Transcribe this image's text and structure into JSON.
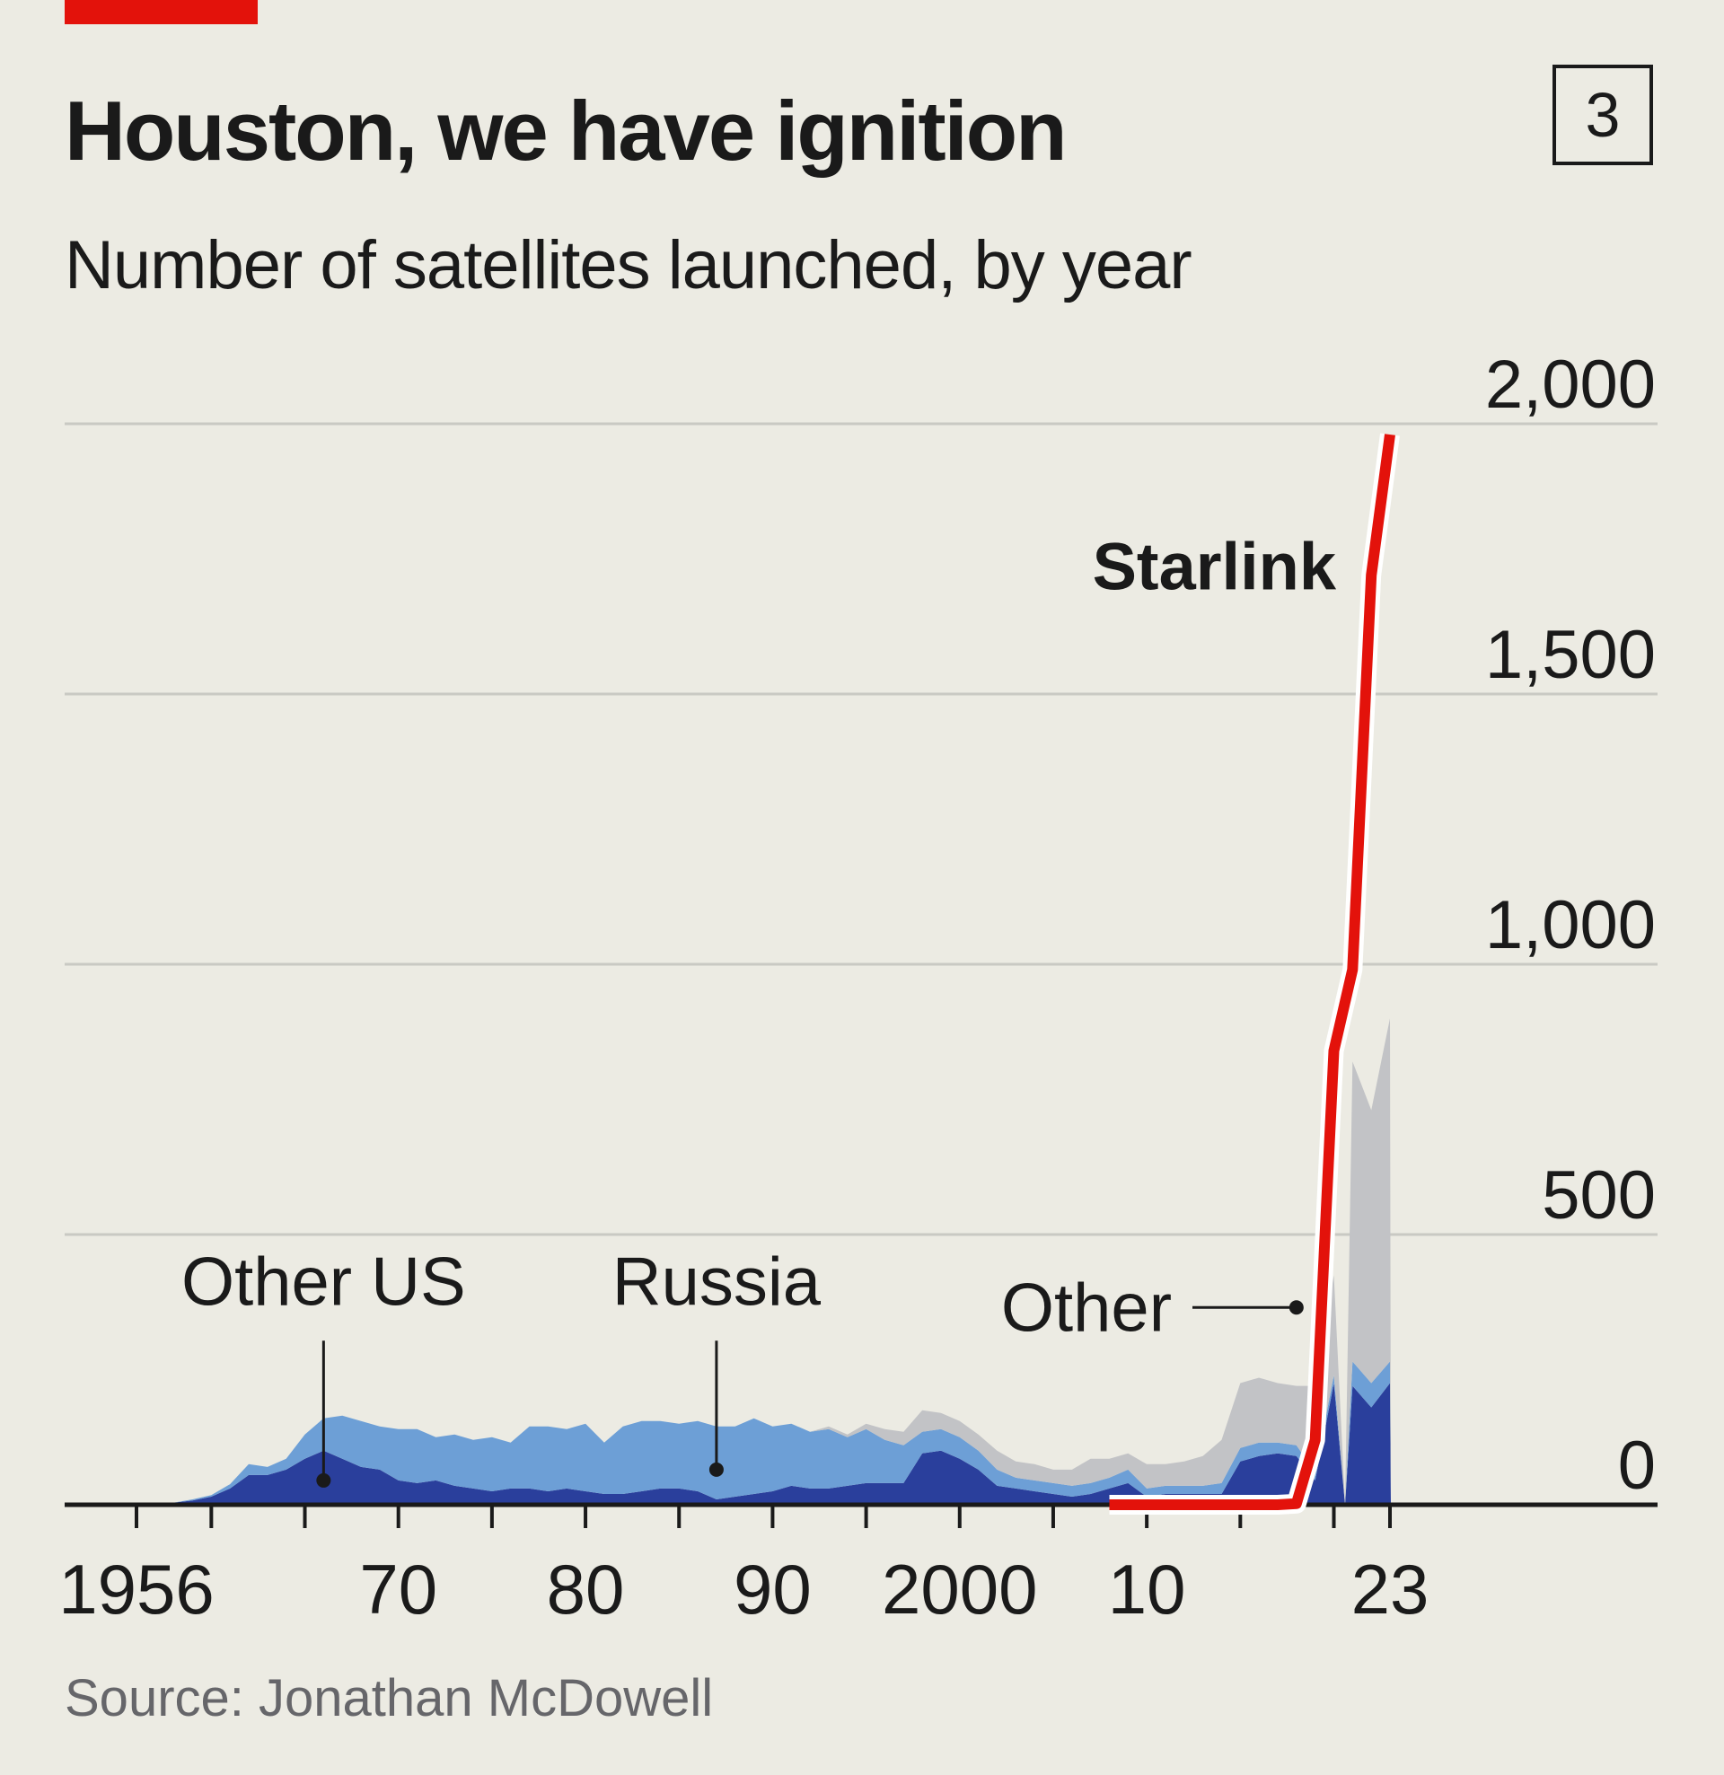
{
  "header": {
    "tag_color": "#e3120b",
    "title": "Houston, we have ignition",
    "chart_number": "3",
    "source": "Source: Jonathan McDowell"
  },
  "chart_data": {
    "type": "area",
    "title": "Houston, we have ignition",
    "subtitle": "Number of satellites launched, by year",
    "xlabel": "",
    "ylabel": "",
    "xlim": [
      1956,
      2023
    ],
    "ylim": [
      0,
      2000
    ],
    "grid": true,
    "x_ticks": [
      1956,
      1960,
      1965,
      1970,
      1975,
      1980,
      1985,
      1990,
      1995,
      2000,
      2005,
      2010,
      2015,
      2020,
      2023
    ],
    "x_tick_labels": [
      {
        "x": 1956,
        "label": "1956"
      },
      {
        "x": 1970,
        "label": "70"
      },
      {
        "x": 1980,
        "label": "80"
      },
      {
        "x": 1990,
        "label": "90"
      },
      {
        "x": 2000,
        "label": "2000"
      },
      {
        "x": 2010,
        "label": "10"
      },
      {
        "x": 2023,
        "label": "23"
      }
    ],
    "y_ticks": [
      {
        "value": 0,
        "label": "0"
      },
      {
        "value": 500,
        "label": "500"
      },
      {
        "value": 1000,
        "label": "1,000"
      },
      {
        "value": 1500,
        "label": "1,500"
      },
      {
        "value": 2000,
        "label": "2,000"
      }
    ],
    "x": [
      1956,
      1957,
      1958,
      1959,
      1960,
      1961,
      1962,
      1963,
      1964,
      1965,
      1966,
      1967,
      1968,
      1969,
      1970,
      1971,
      1972,
      1973,
      1974,
      1975,
      1976,
      1977,
      1978,
      1979,
      1980,
      1981,
      1982,
      1983,
      1984,
      1985,
      1986,
      1987,
      1988,
      1989,
      1990,
      1991,
      1992,
      1993,
      1994,
      1995,
      1996,
      1997,
      1998,
      1999,
      2000,
      2001,
      2002,
      2003,
      2004,
      2005,
      2006,
      2007,
      2008,
      2009,
      2010,
      2011,
      2012,
      2013,
      2014,
      2015,
      2016,
      2017,
      2018,
      2019,
      2020,
      2021,
      2022,
      2023
    ],
    "stacked_series": [
      {
        "name": "Other US",
        "color": "#2a3f9c",
        "values": [
          0,
          1,
          4,
          8,
          15,
          30,
          55,
          55,
          65,
          85,
          100,
          85,
          70,
          65,
          45,
          40,
          45,
          35,
          30,
          25,
          30,
          30,
          25,
          30,
          25,
          20,
          20,
          25,
          30,
          30,
          25,
          10,
          15,
          20,
          25,
          35,
          30,
          30,
          35,
          40,
          40,
          40,
          95,
          100,
          85,
          65,
          35,
          30,
          25,
          20,
          15,
          20,
          30,
          40,
          15,
          20,
          20,
          20,
          20,
          80,
          90,
          95,
          90,
          45,
          225,
          235,
          0,
          0
        ]
      },
      {
        "name": "Russia",
        "color": "#6d9fd6",
        "values": [
          0,
          0,
          0,
          2,
          3,
          8,
          20,
          15,
          20,
          45,
          60,
          80,
          85,
          80,
          95,
          100,
          80,
          95,
          90,
          100,
          85,
          115,
          120,
          110,
          125,
          95,
          125,
          130,
          125,
          120,
          130,
          135,
          130,
          140,
          120,
          115,
          105,
          110,
          90,
          100,
          80,
          70,
          40,
          40,
          40,
          35,
          30,
          20,
          20,
          20,
          20,
          20,
          20,
          25,
          15,
          15,
          15,
          15,
          20,
          25,
          25,
          20,
          20,
          15,
          15,
          15,
          0,
          0
        ]
      },
      {
        "name": "Other",
        "color": "#c2c3c6",
        "values": [
          0,
          0,
          0,
          0,
          0,
          0,
          0,
          0,
          0,
          0,
          0,
          0,
          0,
          0,
          0,
          0,
          0,
          0,
          0,
          0,
          0,
          0,
          0,
          0,
          0,
          0,
          0,
          0,
          0,
          0,
          0,
          0,
          0,
          0,
          0,
          0,
          0,
          5,
          5,
          10,
          20,
          25,
          40,
          30,
          30,
          30,
          35,
          30,
          30,
          25,
          30,
          45,
          35,
          30,
          45,
          40,
          45,
          55,
          80,
          120,
          120,
          110,
          110,
          160,
          185,
          165,
          0,
          0
        ]
      }
    ],
    "tail_series": {
      "x": [
        2021,
        2022,
        2023
      ],
      "Other US": [
        220,
        180,
        225
      ],
      "Russia": [
        45,
        45,
        40
      ],
      "Other": [
        555,
        505,
        635
      ]
    },
    "line_series": {
      "name": "Starlink",
      "color": "#e3120b",
      "x": [
        2008,
        2009,
        2010,
        2011,
        2012,
        2013,
        2014,
        2015,
        2016,
        2017,
        2018,
        2019,
        2020,
        2021,
        2022,
        2023
      ],
      "values": [
        0,
        0,
        0,
        0,
        0,
        0,
        0,
        0,
        0,
        0,
        2,
        120,
        840,
        990,
        1720,
        1980
      ]
    },
    "annotations": [
      {
        "label": "Other US",
        "series": "Other US",
        "x": 1966,
        "y": 45,
        "label_y": 370
      },
      {
        "label": "Russia",
        "series": "Russia",
        "x": 1987,
        "y": 65,
        "label_y": 370
      },
      {
        "label": "Other",
        "series": "Other",
        "x": 2018,
        "y": 365
      },
      {
        "label": "Starlink",
        "series": "Starlink",
        "x": 2017,
        "y": 1740
      }
    ]
  }
}
